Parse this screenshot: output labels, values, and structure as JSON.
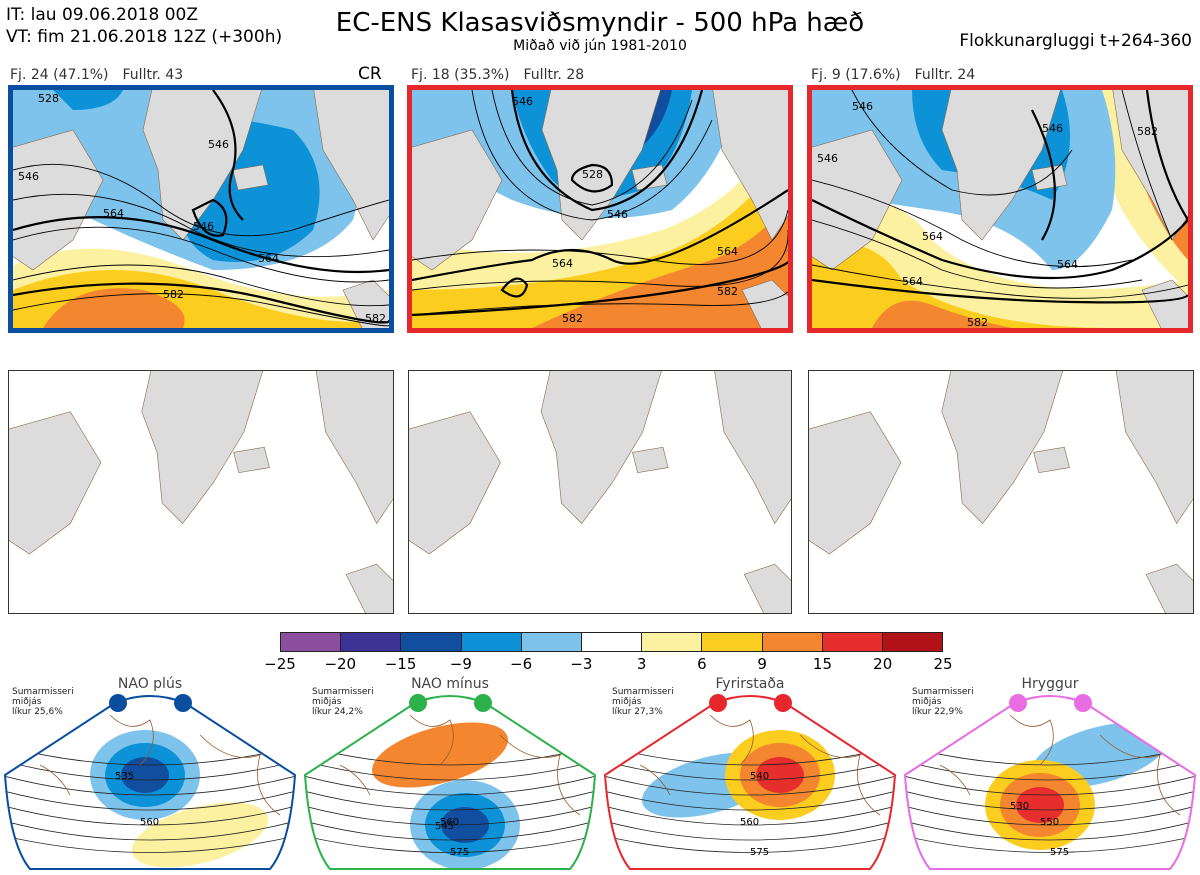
{
  "header": {
    "it": "IT: lau 09.06.2018 00Z",
    "vt": "VT: fim 21.06.2018 12Z  (+300h)",
    "title": "EC-ENS Klasasviðsmyndir - 500 hPa hæð",
    "subtitle": "Miðað við jún 1981-2010",
    "window": "Flokkunargluggi t+264-360"
  },
  "clusters": [
    {
      "fj": "Fj. 24 (47.1%)",
      "fulltr": "Fulltr. 43",
      "tag": "CR",
      "border_color": "#0a4f9f",
      "contour_labels": [
        "528",
        "546",
        "546",
        "546",
        "564",
        "564",
        "582",
        "582"
      ]
    },
    {
      "fj": "Fj. 18 (35.3%)",
      "fulltr": "Fulltr. 28",
      "tag": "",
      "border_color": "#e6282d",
      "contour_labels": [
        "546",
        "528",
        "546",
        "564",
        "564",
        "582",
        "582"
      ]
    },
    {
      "fj": "Fj. 9 (17.6%)",
      "fulltr": "Fulltr. 24",
      "tag": "",
      "border_color": "#e6282d",
      "contour_labels": [
        "546",
        "546",
        "564",
        "546",
        "564",
        "564",
        "582",
        "582"
      ]
    }
  ],
  "colorbar": {
    "colors": [
      "#8c4fa0",
      "#3d3396",
      "#124e9f",
      "#0d92d8",
      "#7ec3ec",
      "#ffffff",
      "#fcf1a1",
      "#fbcd1f",
      "#f3862f",
      "#e62e2d",
      "#b01218"
    ],
    "ticks": [
      "−25",
      "−20",
      "−15",
      "−9",
      "−6",
      "−3",
      "3",
      "6",
      "9",
      "15",
      "20",
      "25"
    ]
  },
  "regimes": [
    {
      "name": "NAO plús",
      "season": "Sumarmisseri",
      "median": "miðjás",
      "prob": "líkur 25,6%",
      "color": "#0a4f9f",
      "labels": [
        "535",
        "560"
      ]
    },
    {
      "name": "NAO mínus",
      "season": "Sumarmisseri",
      "median": "miðjás",
      "prob": "líkur 24,2%",
      "color": "#2db14a",
      "labels": [
        "545",
        "560",
        "575"
      ]
    },
    {
      "name": "Fyrirstaða",
      "season": "Sumarmisseri",
      "median": "miðjás",
      "prob": "líkur 27,3%",
      "color": "#e6282d",
      "labels": [
        "540",
        "560",
        "575"
      ]
    },
    {
      "name": "Hryggur",
      "season": "Sumarmisseri",
      "median": "miðjás",
      "prob": "líkur 22,9%",
      "color": "#e86de3",
      "labels": [
        "530",
        "550",
        "575"
      ]
    }
  ]
}
